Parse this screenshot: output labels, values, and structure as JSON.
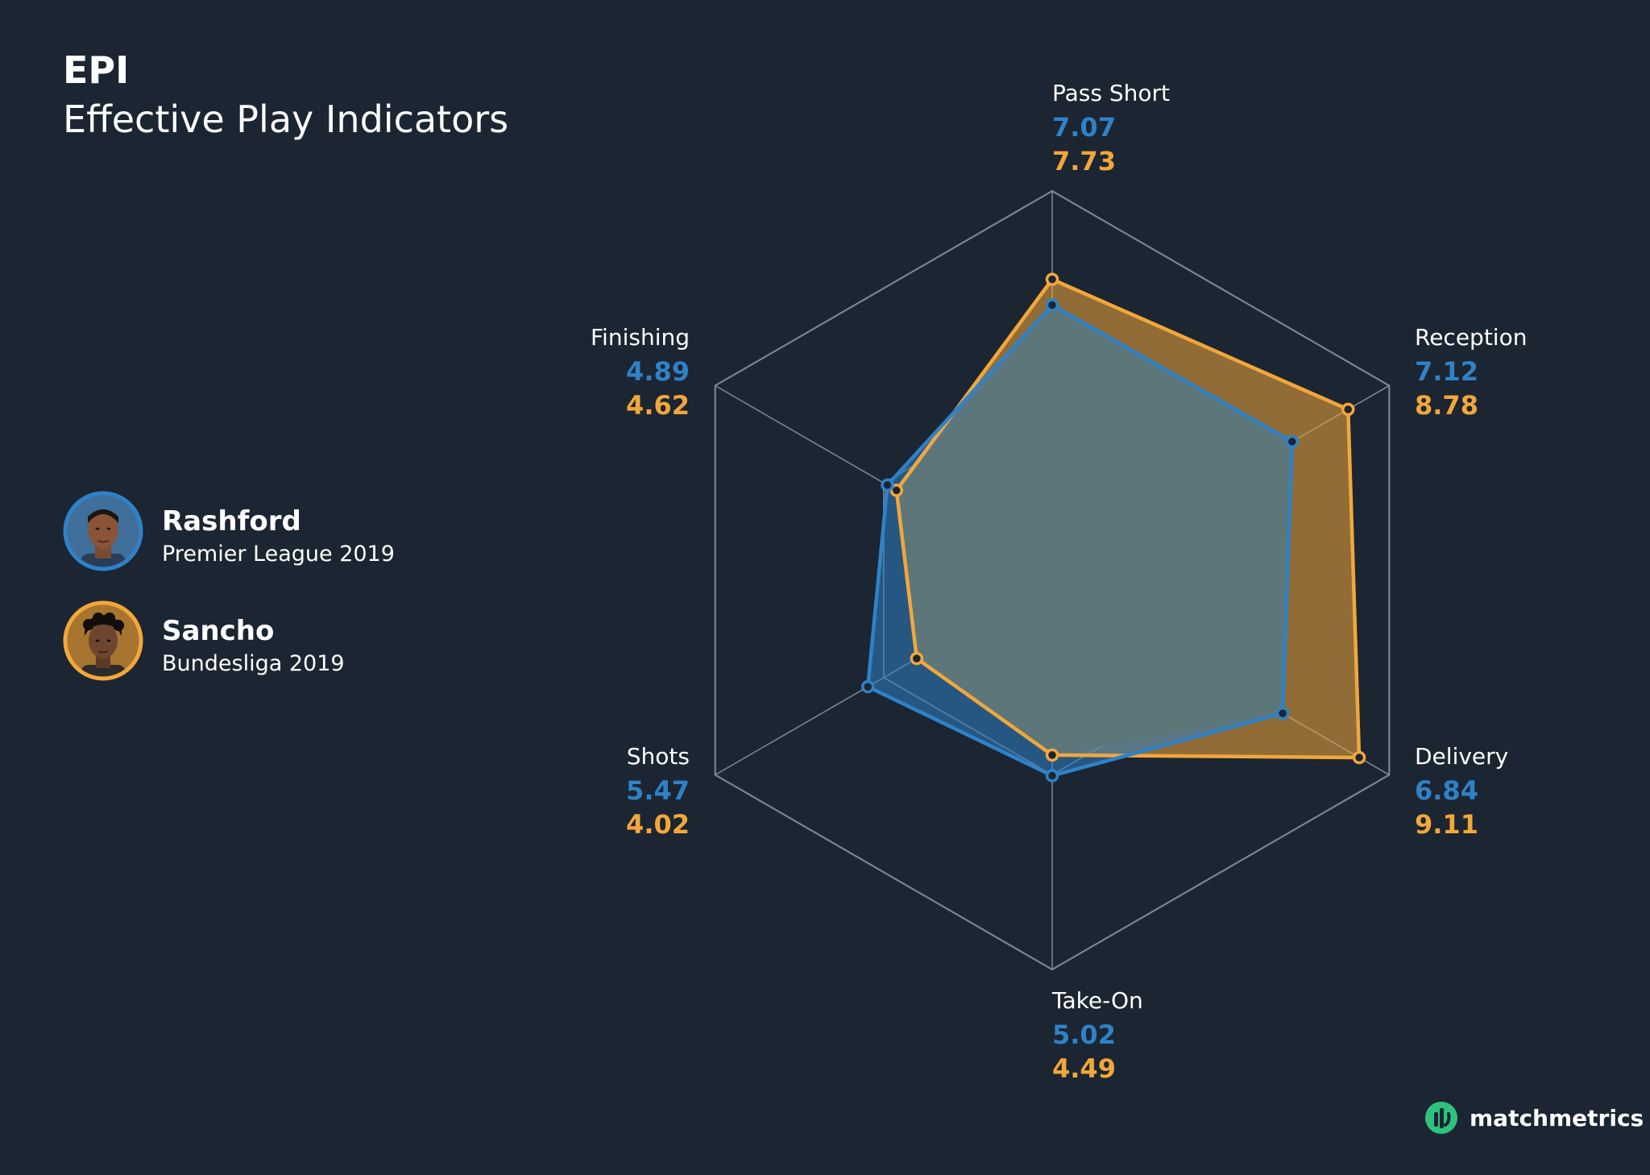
{
  "header": {
    "title": "EPI",
    "subtitle": "Effective Play Indicators"
  },
  "players": [
    {
      "name": "Rashford",
      "league": "Premier League 2019",
      "color": "#2f82c7"
    },
    {
      "name": "Sancho",
      "league": "Bundesliga 2019",
      "color": "#f2a73b"
    }
  ],
  "brand": {
    "name": "matchmetrics",
    "icon": "matchmetrics-logo-icon",
    "color": "#2ec27e"
  },
  "colors": {
    "background": "#1c2532",
    "grid": "#7a8491",
    "rashford": "#2f82c7",
    "sancho": "#f2a73b",
    "overlap": "#5c7679"
  },
  "chart_data": {
    "type": "radar",
    "rmax": 10,
    "grid_levels": [
      5,
      10
    ],
    "axes": [
      "Pass Short",
      "Reception",
      "Delivery",
      "Take-On",
      "Shots",
      "Finishing"
    ],
    "series": [
      {
        "name": "Rashford",
        "values": [
          7.07,
          7.12,
          6.84,
          5.02,
          5.47,
          4.89
        ]
      },
      {
        "name": "Sancho",
        "values": [
          7.73,
          8.78,
          9.11,
          4.49,
          4.02,
          4.62
        ]
      }
    ]
  }
}
